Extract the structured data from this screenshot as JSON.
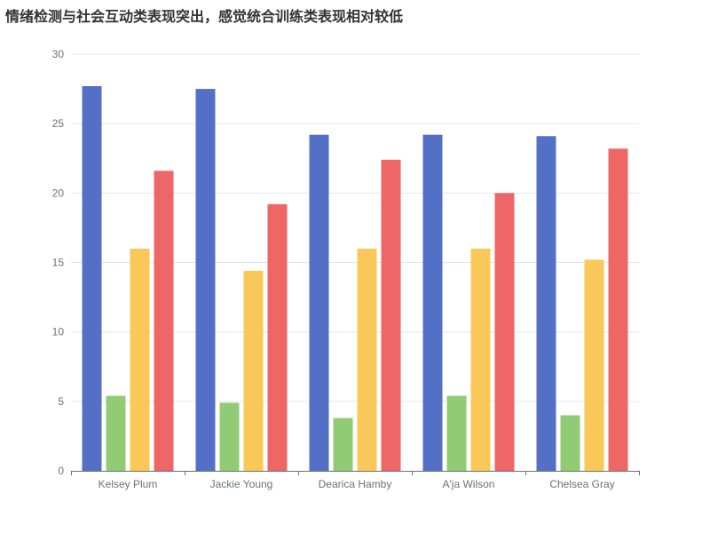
{
  "chart_data": {
    "type": "bar",
    "title": "情绪检测与社会互动类表现突出，感觉统合训练类表现相对较低",
    "categories": [
      "Kelsey Plum",
      "Jackie Young",
      "Dearica Hamby",
      "A'ja Wilson",
      "Chelsea Gray"
    ],
    "series": [
      {
        "color": "#5470c6",
        "values": [
          27.7,
          27.5,
          24.2,
          24.2,
          24.1
        ]
      },
      {
        "color": "#91cc75",
        "values": [
          5.4,
          4.9,
          3.8,
          5.4,
          4.0
        ]
      },
      {
        "color": "#fac858",
        "values": [
          16.0,
          14.4,
          16.0,
          16.0,
          15.2
        ]
      },
      {
        "color": "#ee6666",
        "values": [
          21.6,
          19.2,
          22.4,
          20.0,
          23.2
        ]
      }
    ],
    "ylim": [
      0,
      30
    ],
    "yticks": [
      0,
      5,
      10,
      15,
      20,
      25,
      30
    ],
    "grid": true,
    "legend": "none"
  }
}
